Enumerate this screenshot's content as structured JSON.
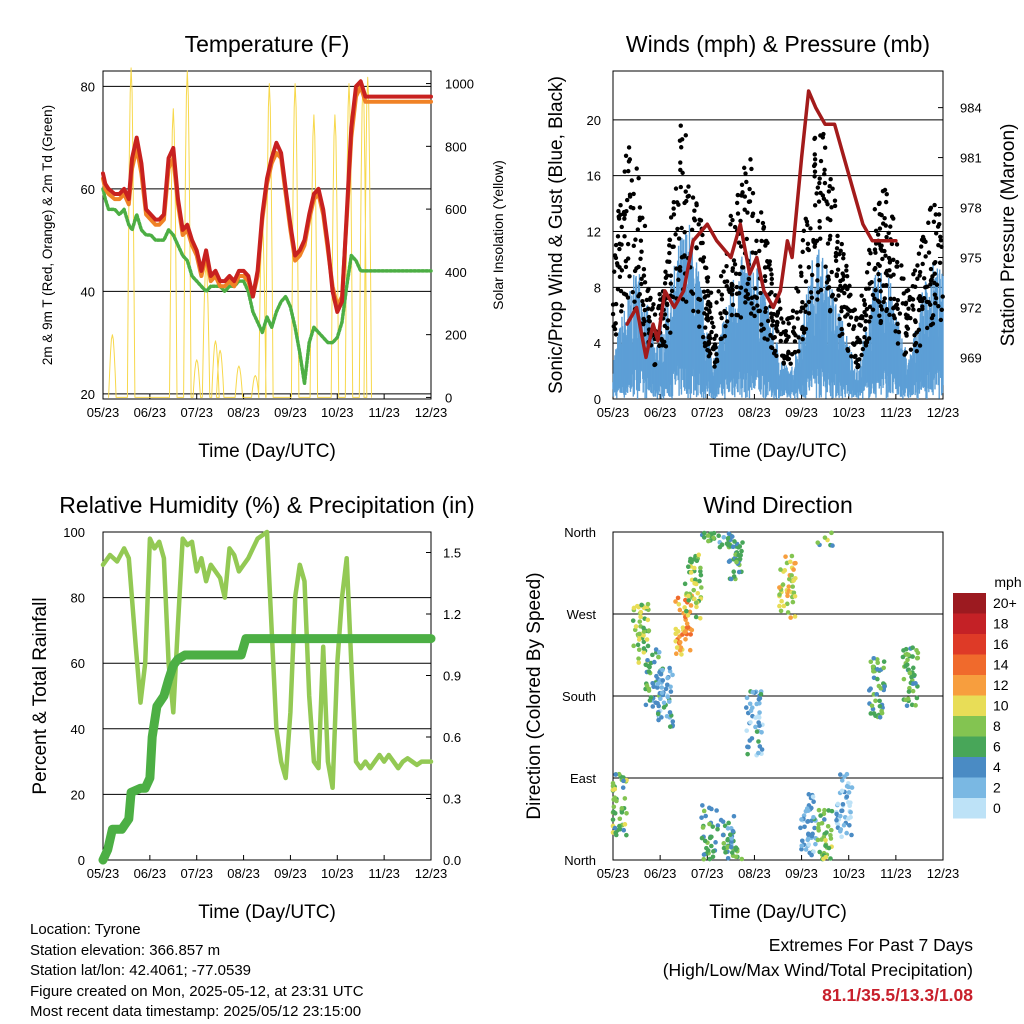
{
  "x_ticks": [
    "05/23",
    "06/23",
    "07/23",
    "08/23",
    "09/23",
    "10/23",
    "11/23",
    "12/23"
  ],
  "colors": {
    "temp2m": "#c8211f",
    "temp9m": "#f08226",
    "dewpoint": "#4cae44",
    "solar": "#f7d84b",
    "gust": "#000000",
    "wind": "#5d9fd6",
    "pressure": "#a31b1b",
    "rh": "#93c954",
    "precip": "#4caf44"
  },
  "chart_data": [
    {
      "type": "line",
      "title": "Temperature (F)",
      "xlabel": "Time (Day/UTC)",
      "ylabel": "2m & 9m T (Red, Orange) & 2m Td (Green)",
      "ylabel_right": "Solar Insolation (Yellow)",
      "ylim": [
        19,
        83
      ],
      "yticks": [
        20,
        40,
        60,
        80
      ],
      "ylim_right": [
        -5,
        1040
      ],
      "yticks_right": [
        0,
        200,
        400,
        600,
        800,
        1000
      ],
      "x": [
        0,
        0.05,
        0.12,
        0.25,
        0.35,
        0.45,
        0.55,
        0.62,
        0.72,
        0.82,
        0.92,
        1.02,
        1.12,
        1.2,
        1.3,
        1.4,
        1.5,
        1.6,
        1.7,
        1.8,
        1.9,
        2.0,
        2.1,
        2.2,
        2.3,
        2.4,
        2.5,
        2.6,
        2.7,
        2.8,
        2.9,
        3.0,
        3.1,
        3.2,
        3.3,
        3.4,
        3.5,
        3.6,
        3.7,
        3.8,
        3.9,
        4.0,
        4.1,
        4.2,
        4.3,
        4.4,
        4.5,
        4.6,
        4.7,
        4.8,
        4.9,
        5.0,
        5.1,
        5.2,
        5.3,
        5.4,
        5.5,
        5.6,
        5.7,
        5.8,
        5.9,
        6.0,
        6.1,
        6.2,
        6.3,
        6.4,
        6.5,
        6.6,
        6.7,
        6.8,
        6.9,
        7.0
      ],
      "series": [
        {
          "name": "2m T",
          "y": [
            63,
            61,
            60,
            59,
            59,
            60,
            58,
            66,
            70,
            65,
            56,
            55,
            54,
            54,
            55,
            66,
            68,
            58,
            52,
            53,
            50,
            48,
            44,
            48,
            43,
            44,
            42,
            42,
            43,
            42,
            44,
            44,
            43,
            39,
            44,
            55,
            62,
            66,
            69,
            67,
            60,
            53,
            47,
            48,
            50,
            55,
            59,
            60,
            56,
            49,
            40,
            36,
            38,
            55,
            72,
            80,
            81,
            78,
            78,
            78,
            78,
            78,
            78,
            78,
            78,
            78,
            78,
            78,
            78,
            78,
            78,
            78
          ]
        },
        {
          "name": "9m T",
          "y": [
            62,
            60,
            59,
            58,
            58,
            59,
            57,
            64,
            68,
            63,
            55,
            54,
            53,
            53,
            54,
            64,
            66,
            57,
            51,
            52,
            49,
            47,
            43,
            47,
            42,
            43,
            41,
            41,
            42,
            41,
            43,
            43,
            42,
            39,
            43,
            54,
            61,
            65,
            67,
            66,
            59,
            52,
            46,
            47,
            49,
            54,
            58,
            59,
            55,
            48,
            41,
            37,
            39,
            54,
            70,
            78,
            80,
            77,
            77,
            77,
            77,
            77,
            77,
            77,
            77,
            77,
            77,
            77,
            77,
            77,
            77,
            77
          ]
        },
        {
          "name": "2m Td",
          "y": [
            60,
            58,
            56,
            56,
            55,
            56,
            53,
            52,
            55,
            52,
            51,
            51,
            50,
            50,
            50,
            52,
            51,
            49,
            47,
            46,
            43,
            42,
            41,
            40,
            41,
            41,
            41,
            40,
            41,
            41,
            42,
            42,
            40,
            36,
            34,
            32,
            35,
            33,
            36,
            38,
            39,
            37,
            33,
            28,
            22,
            30,
            33,
            32,
            31,
            30,
            30,
            31,
            34,
            41,
            47,
            46,
            44,
            44,
            44,
            44,
            44,
            44,
            44,
            44,
            44,
            44,
            44,
            44,
            44,
            44,
            44,
            44
          ]
        }
      ],
      "solar_days": [
        0.2,
        0.6,
        1.5,
        1.8,
        2.0,
        2.2,
        2.4,
        2.5,
        2.9,
        3.25,
        3.4,
        3.55,
        4.1,
        4.5,
        4.95,
        5.25,
        5.55,
        5.65
      ],
      "solar_peaks": [
        200,
        1050,
        920,
        1040,
        120,
        420,
        180,
        150,
        100,
        70,
        550,
        1000,
        1000,
        900,
        900,
        1000,
        1000,
        1020
      ]
    },
    {
      "type": "line",
      "title": "Winds (mph) & Pressure (mb)",
      "xlabel": "Time (Day/UTC)",
      "ylabel": "Sonic/Prop Wind & Gust (Blue, Black)",
      "ylabel_right": "Station Pressure (Maroon)",
      "ylim": [
        0,
        23.5
      ],
      "yticks": [
        0,
        4,
        8,
        12,
        16,
        20
      ],
      "ylim_right": [
        966.5,
        986.2
      ],
      "yticks_right": [
        969,
        972,
        975,
        978,
        981,
        984
      ],
      "pressure_x": [
        0.3,
        0.5,
        0.7,
        0.85,
        0.95,
        1.0,
        1.1,
        1.3,
        1.5,
        1.7,
        2.0,
        2.2,
        2.5,
        2.7,
        2.9,
        3.05,
        3.2,
        3.4,
        3.55,
        3.7,
        3.8,
        4.0,
        4.15,
        4.3,
        4.5,
        4.7,
        4.9,
        5.1,
        5.3,
        5.5,
        5.7,
        5.9,
        6.0
      ],
      "pressure_y": [
        971,
        972,
        969,
        971,
        970,
        971,
        973,
        972,
        973,
        976,
        977,
        976,
        975,
        977,
        974,
        975,
        973,
        972,
        973,
        976,
        975,
        981,
        985,
        984,
        983,
        983,
        981,
        979,
        977,
        976,
        976,
        976,
        976
      ],
      "wind_envelope": [
        3,
        6,
        8,
        10,
        7,
        4,
        6,
        9,
        12,
        13,
        10,
        6,
        3,
        6,
        9,
        10,
        11,
        10,
        8,
        5,
        3,
        2,
        5,
        8,
        12,
        10,
        8,
        6,
        4,
        2,
        6,
        9,
        10,
        8,
        5,
        3,
        6,
        9,
        10,
        9
      ],
      "gust_envelope": [
        9,
        17,
        20,
        16,
        12,
        6,
        9,
        14,
        20,
        19,
        15,
        10,
        6,
        10,
        14,
        16,
        18,
        15,
        12,
        9,
        6,
        6,
        10,
        14,
        20,
        19,
        16,
        12,
        8,
        6,
        10,
        14,
        16,
        14,
        10,
        8,
        10,
        13,
        15,
        13
      ]
    },
    {
      "type": "line",
      "title": "Relative Humidity (%) & Precipitation (in)",
      "xlabel": "Time (Day/UTC)",
      "ylabel": "Percent & Total Rainfall",
      "ylim": [
        0,
        100
      ],
      "yticks": [
        0,
        20,
        40,
        60,
        80,
        100
      ],
      "ylim_right": [
        0,
        1.6
      ],
      "yticks_right": [
        "0.0",
        "0.3",
        "0.6",
        "0.9",
        "1.2",
        "1.5"
      ],
      "rh_x": [
        0,
        0.15,
        0.3,
        0.45,
        0.55,
        0.7,
        0.8,
        0.9,
        1.0,
        1.1,
        1.2,
        1.3,
        1.4,
        1.5,
        1.6,
        1.7,
        1.8,
        1.9,
        2.0,
        2.1,
        2.2,
        2.3,
        2.4,
        2.5,
        2.6,
        2.7,
        2.8,
        2.9,
        3.0,
        3.1,
        3.2,
        3.3,
        3.4,
        3.5,
        3.6,
        3.7,
        3.8,
        3.9,
        4.0,
        4.1,
        4.2,
        4.3,
        4.4,
        4.5,
        4.6,
        4.7,
        4.8,
        4.9,
        5.0,
        5.1,
        5.2,
        5.3,
        5.4,
        5.5,
        5.6,
        5.7,
        5.8,
        5.9,
        6.0,
        6.1,
        6.2,
        6.3,
        6.4,
        6.5,
        6.6,
        6.7,
        6.8,
        6.9,
        7.0
      ],
      "rh_y": [
        90,
        93,
        91,
        95,
        92,
        65,
        48,
        60,
        98,
        95,
        97,
        92,
        60,
        45,
        72,
        98,
        96,
        97,
        88,
        92,
        85,
        90,
        88,
        86,
        80,
        95,
        93,
        88,
        90,
        92,
        95,
        98,
        99,
        100,
        70,
        40,
        30,
        25,
        45,
        80,
        90,
        85,
        50,
        30,
        28,
        65,
        30,
        22,
        60,
        80,
        92,
        60,
        30,
        28,
        30,
        28,
        30,
        32,
        30,
        32,
        30,
        28,
        30,
        31,
        30,
        29,
        30,
        30,
        30
      ],
      "precip_x": [
        0,
        0.1,
        0.2,
        0.4,
        0.55,
        0.6,
        0.8,
        0.9,
        1.0,
        1.05,
        1.15,
        1.3,
        1.4,
        1.5,
        1.6,
        1.75,
        2.0,
        2.5,
        2.95,
        3.05,
        3.2,
        4.0,
        5.0,
        7.0
      ],
      "precip_y": [
        0,
        0.05,
        0.15,
        0.15,
        0.2,
        0.33,
        0.35,
        0.35,
        0.4,
        0.6,
        0.75,
        0.8,
        0.88,
        0.95,
        0.98,
        1.0,
        1.0,
        1.0,
        1.0,
        1.08,
        1.08,
        1.08,
        1.08,
        1.08
      ]
    },
    {
      "type": "scatter",
      "title": "Wind Direction",
      "xlabel": "Time (Day/UTC)",
      "ylabel": "Direction (Colored By Speed)",
      "yticks": [
        "North",
        "East",
        "South",
        "West",
        "North"
      ],
      "colorbar_title": "mph",
      "colorbar_labels": [
        "20+",
        "18",
        "16",
        "14",
        "12",
        "10",
        "8",
        "6",
        "4",
        "2",
        "0"
      ],
      "colorbar_colors": [
        "#9c1a20",
        "#c42126",
        "#de3a27",
        "#f06a2c",
        "#f79e3e",
        "#e8dd57",
        "#83c451",
        "#48a659",
        "#4a8bc4",
        "#7ab8e3",
        "#bde2f7"
      ],
      "clusters": [
        {
          "x": 0.12,
          "dir": 60,
          "speed": 7
        },
        {
          "x": 0.6,
          "dir": 250,
          "speed": 8
        },
        {
          "x": 0.85,
          "dir": 200,
          "speed": 5
        },
        {
          "x": 1.1,
          "dir": 180,
          "speed": 3
        },
        {
          "x": 1.5,
          "dir": 260,
          "speed": 12
        },
        {
          "x": 1.7,
          "dir": 300,
          "speed": 8
        },
        {
          "x": 2.05,
          "dir": 25,
          "speed": 6
        },
        {
          "x": 2.4,
          "dir": 15,
          "speed": 5
        },
        {
          "x": 2.6,
          "dir": 340,
          "speed": 6
        },
        {
          "x": 3.0,
          "dir": 150,
          "speed": 3
        },
        {
          "x": 3.7,
          "dir": 300,
          "speed": 10
        },
        {
          "x": 4.15,
          "dir": 40,
          "speed": 3
        },
        {
          "x": 4.5,
          "dir": 20,
          "speed": 7
        },
        {
          "x": 4.9,
          "dir": 60,
          "speed": 2
        },
        {
          "x": 5.6,
          "dir": 190,
          "speed": 6
        },
        {
          "x": 6.3,
          "dir": 200,
          "speed": 6
        }
      ]
    }
  ],
  "info": {
    "location": "Location: Tyrone",
    "elevation": "Station elevation: 366.857 m",
    "latlon": "Station lat/lon: 42.4061; -77.0539",
    "created": "Figure created on Mon, 2025-05-12, at 23:31 UTC",
    "recent": "Most recent data timestamp: 2025/05/12 23:15:00"
  },
  "extremes": {
    "title": "Extremes For Past 7 Days",
    "subtitle": "(High/Low/Max Wind/Total Precipitation)",
    "values": "81.1/35.5/13.3/1.08"
  }
}
